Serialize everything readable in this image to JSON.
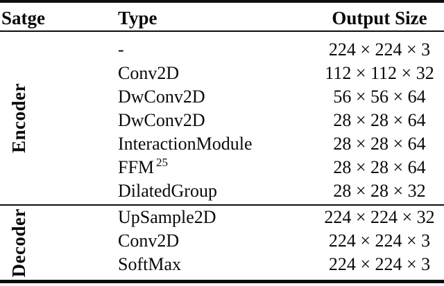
{
  "table": {
    "headers": {
      "stage": "Satge",
      "type": "Type",
      "output": "Output Size"
    },
    "sections": [
      {
        "stage": "Encoder",
        "rows": [
          {
            "type": "-",
            "output": "224 × 224 × 3"
          },
          {
            "type": "Conv2D",
            "output": "112 × 112 × 32"
          },
          {
            "type": "DwConv2D",
            "output": "56 × 56 × 64"
          },
          {
            "type": "DwConv2D",
            "output": "28 × 28 × 64"
          },
          {
            "type": "InteractionModule",
            "output": "28 × 28 × 64"
          },
          {
            "type": "FFM",
            "type_sup": "25",
            "output": "28 × 28 × 64"
          },
          {
            "type": "DilatedGroup",
            "output": "28 × 28 × 32"
          }
        ]
      },
      {
        "stage": "Decoder",
        "rows": [
          {
            "type": "UpSample2D",
            "output": "224 × 224 × 32"
          },
          {
            "type": "Conv2D",
            "output": "224 × 224 × 3"
          },
          {
            "type": "SoftMax",
            "output": "224 × 224 × 3"
          }
        ]
      }
    ],
    "colors": {
      "text": "#0a0a0a",
      "rule": "#0d0d0d",
      "background": "#ffffff"
    }
  }
}
